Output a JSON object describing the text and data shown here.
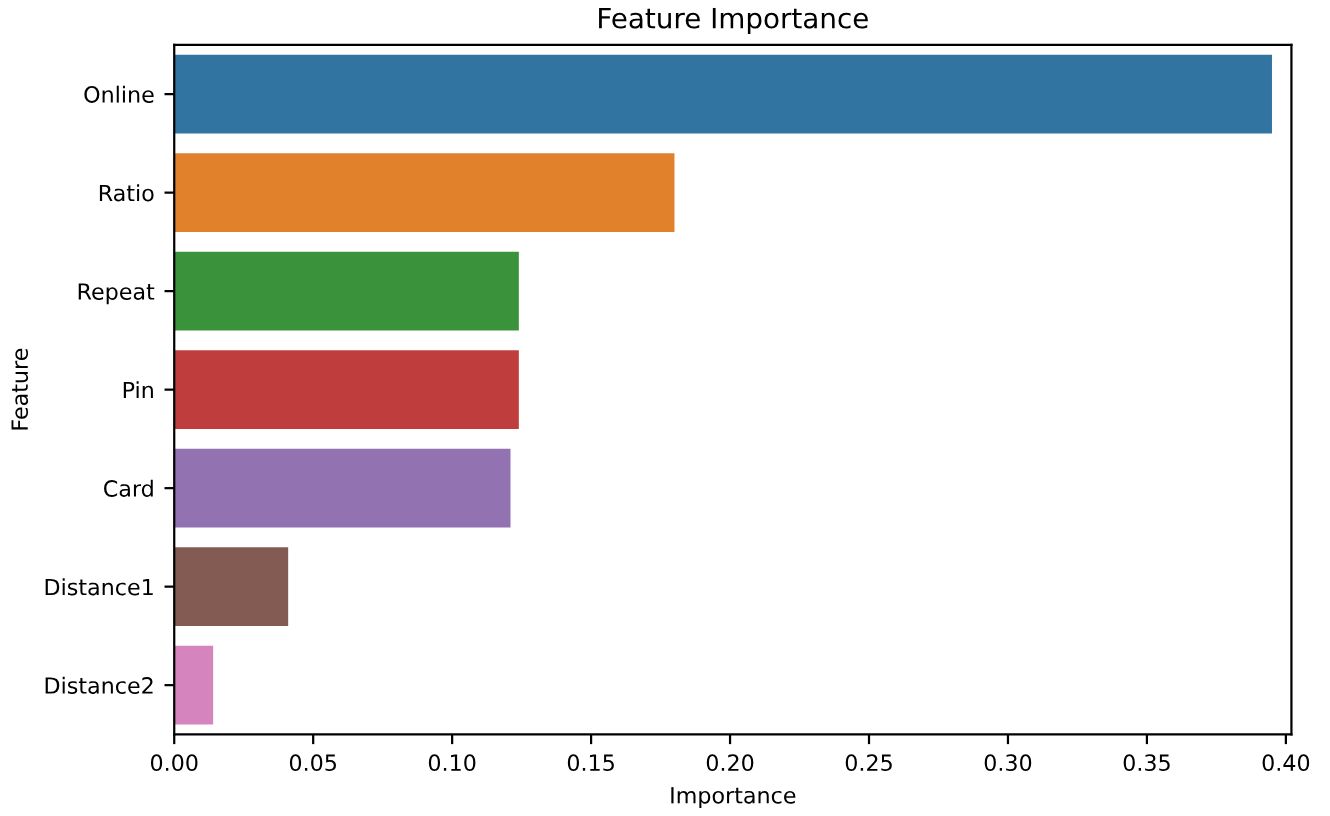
{
  "chart_data": {
    "type": "bar",
    "orientation": "horizontal",
    "title": "Feature Importance",
    "xlabel": "Importance",
    "ylabel": "Feature",
    "categories": [
      "Online",
      "Ratio",
      "Repeat",
      "Pin",
      "Card",
      "Distance1",
      "Distance2"
    ],
    "values": [
      0.395,
      0.18,
      0.124,
      0.124,
      0.121,
      0.041,
      0.014
    ],
    "colors": [
      "#3274a1",
      "#e1812c",
      "#3a923a",
      "#c03d3e",
      "#9372b2",
      "#845b53",
      "#d684bd"
    ],
    "xlim": [
      0,
      0.402
    ],
    "xticks": [
      {
        "value": 0,
        "label": "0.00"
      },
      0.05,
      {
        "value": 0.1,
        "label": "0.10"
      },
      0.15,
      {
        "value": 0.2,
        "label": "0.20"
      },
      0.25,
      {
        "value": 0.3,
        "label": "0.30"
      },
      0.35,
      {
        "value": 0.4,
        "label": "0.40"
      }
    ],
    "grid": false,
    "legend": false
  }
}
